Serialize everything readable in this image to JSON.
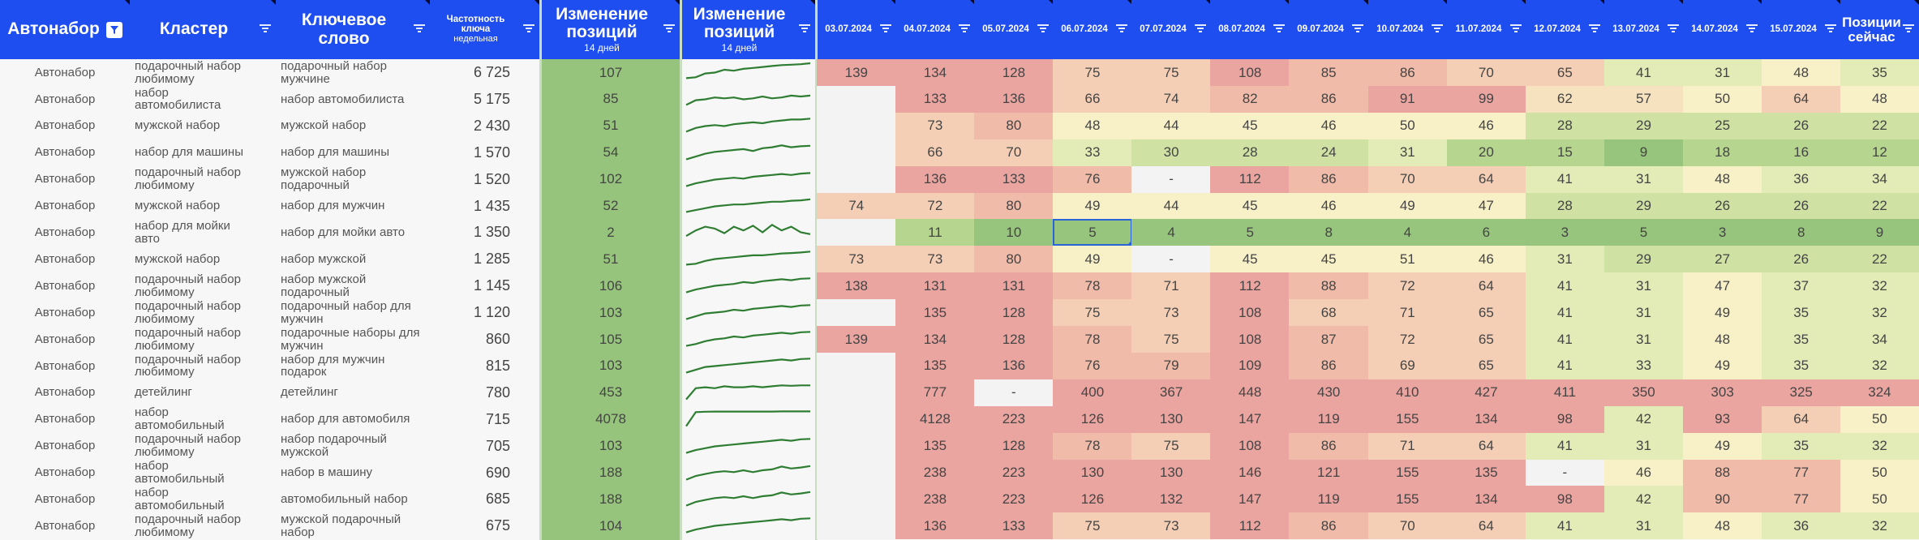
{
  "headers": {
    "autonabor": "Автонабор",
    "cluster": "Кластер",
    "keyword": "Ключевое слово",
    "freq_title": "Частотность ключа",
    "freq_sub": "недельная",
    "change_title": "Изменение позиций",
    "change_sub": "14 дней",
    "change2_title": "Изменение позиций",
    "change2_sub": "14 дней",
    "dates": [
      "03.07.2024",
      "04.07.2024",
      "05.07.2024",
      "06.07.2024",
      "07.07.2024",
      "08.07.2024",
      "09.07.2024",
      "10.07.2024",
      "11.07.2024",
      "12.07.2024",
      "13.07.2024",
      "14.07.2024",
      "15.07.2024"
    ],
    "now": "Позиции сейчас"
  },
  "icons": {
    "header_filter": "filter-funnel-icon",
    "column_filter": "filter-lines-icon"
  },
  "colors": {
    "header_bg": "#1f4ef0",
    "change_bg": "#97c47d",
    "sparkline": "#2e7d32",
    "selection": "#2a62d8"
  },
  "selected": {
    "row": 6,
    "col": 3
  },
  "rows": [
    {
      "a": "Автонабор",
      "cluster": "подарочный набор любимому",
      "keyword": "подарочный набор мужчине",
      "freq": "6 725",
      "change": "107",
      "values": [
        "139",
        "134",
        "128",
        "75",
        "75",
        "108",
        "85",
        "86",
        "70",
        "65",
        "41",
        "31",
        "48",
        "35"
      ],
      "spark": [
        0.8,
        0.75,
        0.55,
        0.5,
        0.35,
        0.4,
        0.3,
        0.25,
        0.2,
        0.15,
        0.1,
        0.08,
        0.05,
        0.0
      ]
    },
    {
      "a": "Автонабор",
      "cluster": "набор автомобилиста",
      "keyword": "набор автомобилиста",
      "freq": "5 175",
      "change": "85",
      "values": [
        "",
        "133",
        "136",
        "66",
        "74",
        "82",
        "86",
        "91",
        "99",
        "62",
        "57",
        "50",
        "64",
        "48"
      ],
      "spark": [
        0.8,
        0.55,
        0.5,
        0.4,
        0.45,
        0.4,
        0.5,
        0.45,
        0.35,
        0.45,
        0.4,
        0.3,
        0.35,
        0.3
      ]
    },
    {
      "a": "Автонабор",
      "cluster": "мужской набор",
      "keyword": "мужской набор",
      "freq": "2 430",
      "change": "51",
      "values": [
        "",
        "73",
        "80",
        "48",
        "44",
        "45",
        "46",
        "50",
        "46",
        "28",
        "29",
        "25",
        "26",
        "22"
      ],
      "spark": [
        0.8,
        0.6,
        0.5,
        0.45,
        0.5,
        0.4,
        0.35,
        0.3,
        0.35,
        0.25,
        0.2,
        0.15,
        0.15,
        0.1
      ]
    },
    {
      "a": "Автонабор",
      "cluster": "набор для машины",
      "keyword": "набор для машины",
      "freq": "1 570",
      "change": "54",
      "values": [
        "",
        "66",
        "70",
        "33",
        "30",
        "28",
        "24",
        "31",
        "20",
        "15",
        "9",
        "18",
        "16",
        "12"
      ],
      "spark": [
        0.85,
        0.7,
        0.55,
        0.45,
        0.4,
        0.35,
        0.3,
        0.4,
        0.25,
        0.2,
        0.1,
        0.2,
        0.15,
        0.12
      ]
    },
    {
      "a": "Автонабор",
      "cluster": "подарочный набор любимому",
      "keyword": "мужской набор подарочный",
      "freq": "1 520",
      "change": "102",
      "values": [
        "",
        "136",
        "133",
        "76",
        "-",
        "112",
        "86",
        "70",
        "64",
        "41",
        "31",
        "48",
        "36",
        "34"
      ],
      "spark": [
        0.85,
        0.7,
        0.6,
        0.5,
        0.45,
        0.4,
        0.45,
        0.35,
        0.3,
        0.25,
        0.2,
        0.25,
        0.18,
        0.15
      ]
    },
    {
      "a": "Автонабор",
      "cluster": "мужской набор",
      "keyword": "набор для мужчин",
      "freq": "1 435",
      "change": "52",
      "values": [
        "74",
        "72",
        "80",
        "49",
        "44",
        "45",
        "46",
        "49",
        "47",
        "28",
        "29",
        "26",
        "26",
        "22"
      ],
      "spark": [
        0.8,
        0.7,
        0.6,
        0.5,
        0.45,
        0.4,
        0.4,
        0.35,
        0.3,
        0.25,
        0.25,
        0.2,
        0.18,
        0.12
      ]
    },
    {
      "a": "Автонабор",
      "cluster": "набор для мойки авто",
      "keyword": "набор для мойки авто",
      "freq": "1 350",
      "change": "2",
      "values": [
        "",
        "11",
        "10",
        "5",
        "4",
        "5",
        "8",
        "4",
        "6",
        "3",
        "5",
        "3",
        "8",
        "9"
      ],
      "spark": [
        0.7,
        0.4,
        0.2,
        0.3,
        0.55,
        0.2,
        0.4,
        0.15,
        0.5,
        0.1,
        0.4,
        0.2,
        0.5,
        0.6
      ]
    },
    {
      "a": "Автонабор",
      "cluster": "мужской набор",
      "keyword": "набор мужской",
      "freq": "1 285",
      "change": "51",
      "values": [
        "73",
        "73",
        "80",
        "49",
        "-",
        "45",
        "45",
        "51",
        "46",
        "31",
        "29",
        "27",
        "26",
        "22"
      ],
      "spark": [
        0.8,
        0.75,
        0.6,
        0.5,
        0.45,
        0.4,
        0.35,
        0.3,
        0.3,
        0.25,
        0.2,
        0.18,
        0.15,
        0.1
      ]
    },
    {
      "a": "Автонабор",
      "cluster": "подарочный набор любимому",
      "keyword": "набор мужской подарочный",
      "freq": "1 145",
      "change": "106",
      "values": [
        "138",
        "131",
        "131",
        "78",
        "71",
        "112",
        "88",
        "72",
        "64",
        "41",
        "31",
        "47",
        "37",
        "32"
      ],
      "spark": [
        0.85,
        0.7,
        0.6,
        0.5,
        0.45,
        0.4,
        0.3,
        0.35,
        0.25,
        0.2,
        0.15,
        0.2,
        0.12,
        0.1
      ]
    },
    {
      "a": "Автонабор",
      "cluster": "подарочный набор любимому",
      "keyword": "подарочный набор для мужчин",
      "freq": "1 120",
      "change": "103",
      "values": [
        "",
        "135",
        "128",
        "75",
        "73",
        "108",
        "68",
        "71",
        "65",
        "41",
        "31",
        "49",
        "35",
        "32"
      ],
      "spark": [
        0.85,
        0.7,
        0.55,
        0.5,
        0.45,
        0.35,
        0.4,
        0.3,
        0.25,
        0.2,
        0.15,
        0.2,
        0.12,
        0.1
      ]
    },
    {
      "a": "Автонабор",
      "cluster": "подарочный набор любимому",
      "keyword": "подарочные наборы для мужчин",
      "freq": "860",
      "change": "105",
      "values": [
        "139",
        "134",
        "128",
        "78",
        "75",
        "108",
        "87",
        "72",
        "65",
        "41",
        "31",
        "48",
        "35",
        "34"
      ],
      "spark": [
        0.85,
        0.75,
        0.6,
        0.5,
        0.45,
        0.35,
        0.4,
        0.3,
        0.25,
        0.2,
        0.15,
        0.2,
        0.12,
        0.1
      ]
    },
    {
      "a": "Автонабор",
      "cluster": "подарочный набор любимому",
      "keyword": "набор для мужчин подарок",
      "freq": "815",
      "change": "103",
      "values": [
        "",
        "135",
        "136",
        "76",
        "79",
        "109",
        "86",
        "69",
        "65",
        "41",
        "33",
        "49",
        "35",
        "32"
      ],
      "spark": [
        0.85,
        0.7,
        0.55,
        0.5,
        0.45,
        0.4,
        0.35,
        0.3,
        0.25,
        0.2,
        0.15,
        0.2,
        0.12,
        0.1
      ]
    },
    {
      "a": "Автонабор",
      "cluster": "детейлинг",
      "keyword": "детейлинг",
      "freq": "780",
      "change": "453",
      "values": [
        "",
        "777",
        "-",
        "400",
        "367",
        "448",
        "430",
        "410",
        "427",
        "411",
        "350",
        "303",
        "325",
        "324"
      ],
      "spark": [
        0.85,
        0.25,
        0.2,
        0.25,
        0.15,
        0.2,
        0.2,
        0.15,
        0.2,
        0.15,
        0.1,
        0.12,
        0.1,
        0.1
      ]
    },
    {
      "a": "Автонабор",
      "cluster": "набор автомобильный",
      "keyword": "набор для автомобиля",
      "freq": "715",
      "change": "4078",
      "values": [
        "",
        "4128",
        "223",
        "126",
        "130",
        "147",
        "119",
        "155",
        "134",
        "98",
        "42",
        "93",
        "64",
        "50"
      ],
      "spark": [
        0.85,
        0.1,
        0.08,
        0.07,
        0.07,
        0.07,
        0.07,
        0.07,
        0.07,
        0.07,
        0.06,
        0.06,
        0.06,
        0.06
      ]
    },
    {
      "a": "Автонабор",
      "cluster": "подарочный набор любимому",
      "keyword": "набор подарочный мужской",
      "freq": "705",
      "change": "103",
      "values": [
        "",
        "135",
        "128",
        "78",
        "75",
        "108",
        "86",
        "71",
        "64",
        "41",
        "31",
        "49",
        "35",
        "32"
      ],
      "spark": [
        0.85,
        0.7,
        0.6,
        0.5,
        0.45,
        0.4,
        0.35,
        0.3,
        0.25,
        0.2,
        0.15,
        0.2,
        0.12,
        0.1
      ]
    },
    {
      "a": "Автонабор",
      "cluster": "набор автомобильный",
      "keyword": "набор в машину",
      "freq": "690",
      "change": "188",
      "values": [
        "",
        "238",
        "223",
        "130",
        "130",
        "146",
        "121",
        "155",
        "135",
        "-",
        "46",
        "88",
        "77",
        "50"
      ],
      "spark": [
        0.85,
        0.65,
        0.55,
        0.45,
        0.4,
        0.45,
        0.35,
        0.45,
        0.35,
        0.3,
        0.15,
        0.25,
        0.2,
        0.12
      ]
    },
    {
      "a": "Автонабор",
      "cluster": "набор автомобильный",
      "keyword": "автомобильный набор",
      "freq": "685",
      "change": "188",
      "values": [
        "",
        "238",
        "223",
        "126",
        "132",
        "147",
        "119",
        "155",
        "134",
        "98",
        "42",
        "90",
        "77",
        "50"
      ],
      "spark": [
        0.85,
        0.65,
        0.55,
        0.45,
        0.4,
        0.45,
        0.35,
        0.45,
        0.35,
        0.3,
        0.15,
        0.25,
        0.2,
        0.12
      ]
    },
    {
      "a": "Автонабор",
      "cluster": "подарочный набор любимому",
      "keyword": "мужской подарочный набор",
      "freq": "675",
      "change": "104",
      "values": [
        "",
        "136",
        "133",
        "75",
        "73",
        "112",
        "86",
        "70",
        "64",
        "41",
        "31",
        "48",
        "36",
        "32"
      ],
      "spark": [
        0.85,
        0.7,
        0.6,
        0.5,
        0.45,
        0.4,
        0.35,
        0.3,
        0.25,
        0.2,
        0.15,
        0.2,
        0.12,
        0.1
      ]
    }
  ]
}
